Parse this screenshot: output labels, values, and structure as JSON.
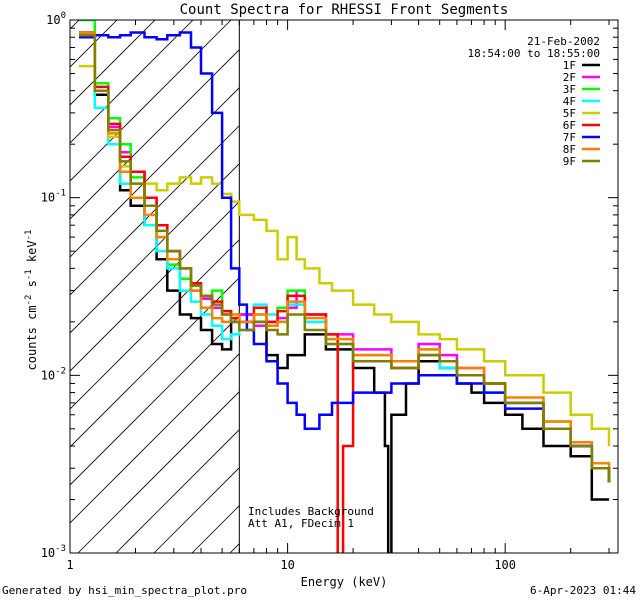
{
  "chart_data": {
    "type": "line",
    "title": "Count Spectra for RHESSI Front Segments",
    "xlabel": "Energy (keV)",
    "ylabel_base": "counts cm",
    "xscale": "log",
    "yscale": "log",
    "xlim": [
      1,
      330
    ],
    "ylim": [
      0.001,
      1.0
    ],
    "x_ticks": [
      {
        "value": 1,
        "label": "1"
      },
      {
        "value": 10,
        "label": "10"
      },
      {
        "value": 100,
        "label": "100"
      }
    ],
    "y_ticks": [
      {
        "value": 1,
        "mant": "10",
        "exp": "0"
      },
      {
        "value": 0.1,
        "mant": "10",
        "exp": "-1"
      },
      {
        "value": 0.01,
        "mant": "10",
        "exp": "-2"
      },
      {
        "value": 0.001,
        "mant": "10",
        "exp": "-3"
      }
    ],
    "date": "21-Feb-2002",
    "time_range": "18:54:00 to 18:55:00",
    "hatched_region": [
      1,
      6
    ],
    "annotations": [
      "Includes Background",
      "Att A1, FDecim  1"
    ],
    "series": [
      {
        "name": "1F",
        "color": "#000000",
        "points": [
          [
            1.1,
            0.85
          ],
          [
            1.3,
            0.38
          ],
          [
            1.5,
            0.22
          ],
          [
            1.7,
            0.11
          ],
          [
            1.9,
            0.09
          ],
          [
            2.2,
            0.07
          ],
          [
            2.5,
            0.045
          ],
          [
            2.8,
            0.03
          ],
          [
            3.2,
            0.022
          ],
          [
            3.6,
            0.021
          ],
          [
            4.0,
            0.018
          ],
          [
            4.5,
            0.015
          ],
          [
            5.0,
            0.014
          ],
          [
            5.5,
            0.02
          ],
          [
            6,
            0.022
          ],
          [
            7,
            0.02
          ],
          [
            8,
            0.013
          ],
          [
            9,
            0.011
          ],
          [
            10,
            0.013
          ],
          [
            12,
            0.017
          ],
          [
            15,
            0.014
          ],
          [
            20,
            0.011
          ],
          [
            25,
            0.008
          ],
          [
            28,
            0.004
          ],
          [
            29,
            0.0009
          ],
          [
            30,
            0.006
          ],
          [
            35,
            0.009
          ],
          [
            40,
            0.012
          ],
          [
            50,
            0.011
          ],
          [
            60,
            0.009
          ],
          [
            70,
            0.008
          ],
          [
            80,
            0.007
          ],
          [
            100,
            0.006
          ],
          [
            120,
            0.005
          ],
          [
            150,
            0.004
          ],
          [
            200,
            0.0035
          ],
          [
            250,
            0.002
          ],
          [
            300,
            0.002
          ]
        ]
      },
      {
        "name": "2F",
        "color": "#ff00ff",
        "points": [
          [
            1.1,
            0.8
          ],
          [
            1.3,
            0.4
          ],
          [
            1.5,
            0.25
          ],
          [
            1.7,
            0.18
          ],
          [
            1.9,
            0.14
          ],
          [
            2.2,
            0.1
          ],
          [
            2.5,
            0.07
          ],
          [
            2.8,
            0.05
          ],
          [
            3.2,
            0.035
          ],
          [
            3.6,
            0.03
          ],
          [
            4.0,
            0.027
          ],
          [
            4.5,
            0.024
          ],
          [
            5.0,
            0.022
          ],
          [
            5.5,
            0.02
          ],
          [
            6,
            0.022
          ],
          [
            7,
            0.019
          ],
          [
            8,
            0.02
          ],
          [
            9,
            0.021
          ],
          [
            10,
            0.024
          ],
          [
            11,
            0.03
          ],
          [
            12,
            0.022
          ],
          [
            15,
            0.017
          ],
          [
            20,
            0.014
          ],
          [
            30,
            0.012
          ],
          [
            40,
            0.015
          ],
          [
            50,
            0.013
          ],
          [
            60,
            0.011
          ],
          [
            80,
            0.009
          ],
          [
            100,
            0.007
          ],
          [
            150,
            0.005
          ],
          [
            200,
            0.004
          ],
          [
            250,
            0.003
          ],
          [
            300,
            0.0025
          ]
        ]
      },
      {
        "name": "3F",
        "color": "#00ff00",
        "points": [
          [
            1.1,
            1.0
          ],
          [
            1.3,
            0.44
          ],
          [
            1.5,
            0.28
          ],
          [
            1.7,
            0.2
          ],
          [
            1.9,
            0.13
          ],
          [
            2.2,
            0.09
          ],
          [
            2.5,
            0.06
          ],
          [
            2.8,
            0.042
          ],
          [
            3.2,
            0.035
          ],
          [
            3.6,
            0.032
          ],
          [
            4.0,
            0.028
          ],
          [
            4.5,
            0.03
          ],
          [
            5.0,
            0.023
          ],
          [
            5.5,
            0.021
          ],
          [
            6,
            0.02
          ],
          [
            7,
            0.022
          ],
          [
            8,
            0.019
          ],
          [
            9,
            0.024
          ],
          [
            10,
            0.03
          ],
          [
            12,
            0.02
          ],
          [
            15,
            0.016
          ],
          [
            20,
            0.013
          ],
          [
            30,
            0.012
          ],
          [
            40,
            0.014
          ],
          [
            50,
            0.012
          ],
          [
            60,
            0.01
          ],
          [
            80,
            0.009
          ],
          [
            100,
            0.007
          ],
          [
            150,
            0.0055
          ],
          [
            200,
            0.004
          ],
          [
            250,
            0.003
          ],
          [
            300,
            0.0025
          ]
        ]
      },
      {
        "name": "4F",
        "color": "#00ffff",
        "points": [
          [
            1.1,
            0.8
          ],
          [
            1.3,
            0.32
          ],
          [
            1.5,
            0.2
          ],
          [
            1.7,
            0.12
          ],
          [
            1.9,
            0.1
          ],
          [
            2.2,
            0.07
          ],
          [
            2.5,
            0.05
          ],
          [
            2.8,
            0.04
          ],
          [
            3.2,
            0.03
          ],
          [
            3.6,
            0.026
          ],
          [
            4.0,
            0.022
          ],
          [
            4.5,
            0.019
          ],
          [
            5.0,
            0.016
          ],
          [
            5.5,
            0.017
          ],
          [
            6,
            0.02
          ],
          [
            7,
            0.025
          ],
          [
            8,
            0.022
          ],
          [
            9,
            0.02
          ],
          [
            10,
            0.025
          ],
          [
            12,
            0.02
          ],
          [
            15,
            0.015
          ],
          [
            20,
            0.012
          ],
          [
            30,
            0.011
          ],
          [
            40,
            0.013
          ],
          [
            50,
            0.011
          ],
          [
            60,
            0.01
          ],
          [
            80,
            0.008
          ],
          [
            100,
            0.007
          ],
          [
            150,
            0.005
          ],
          [
            200,
            0.004
          ],
          [
            250,
            0.003
          ],
          [
            300,
            0.0025
          ]
        ]
      },
      {
        "name": "5F",
        "color": "#cccc00",
        "points": [
          [
            1.1,
            0.55
          ],
          [
            1.3,
            0.4
          ],
          [
            1.5,
            0.22
          ],
          [
            1.7,
            0.15
          ],
          [
            1.9,
            0.12
          ],
          [
            2.2,
            0.12
          ],
          [
            2.5,
            0.11
          ],
          [
            2.8,
            0.12
          ],
          [
            3.2,
            0.13
          ],
          [
            3.6,
            0.12
          ],
          [
            4.0,
            0.13
          ],
          [
            4.5,
            0.12
          ],
          [
            5.0,
            0.105
          ],
          [
            5.5,
            0.095
          ],
          [
            6,
            0.08
          ],
          [
            7,
            0.075
          ],
          [
            8,
            0.065
          ],
          [
            9,
            0.045
          ],
          [
            10,
            0.06
          ],
          [
            11,
            0.045
          ],
          [
            12,
            0.04
          ],
          [
            14,
            0.033
          ],
          [
            16,
            0.03
          ],
          [
            20,
            0.025
          ],
          [
            25,
            0.022
          ],
          [
            30,
            0.02
          ],
          [
            40,
            0.017
          ],
          [
            50,
            0.016
          ],
          [
            60,
            0.014
          ],
          [
            80,
            0.012
          ],
          [
            100,
            0.01
          ],
          [
            150,
            0.008
          ],
          [
            200,
            0.006
          ],
          [
            250,
            0.005
          ],
          [
            300,
            0.004
          ]
        ]
      },
      {
        "name": "6F",
        "color": "#ff0000",
        "points": [
          [
            1.1,
            0.82
          ],
          [
            1.3,
            0.42
          ],
          [
            1.5,
            0.26
          ],
          [
            1.7,
            0.17
          ],
          [
            1.9,
            0.14
          ],
          [
            2.2,
            0.1
          ],
          [
            2.5,
            0.07
          ],
          [
            2.8,
            0.05
          ],
          [
            3.2,
            0.04
          ],
          [
            3.6,
            0.033
          ],
          [
            4.0,
            0.028
          ],
          [
            4.5,
            0.026
          ],
          [
            5.0,
            0.023
          ],
          [
            5.5,
            0.021
          ],
          [
            6,
            0.02
          ],
          [
            7,
            0.024
          ],
          [
            8,
            0.02
          ],
          [
            9,
            0.023
          ],
          [
            10,
            0.028
          ],
          [
            12,
            0.022
          ],
          [
            15,
            0.017
          ],
          [
            17,
            0.0008
          ],
          [
            18,
            0.004
          ],
          [
            20,
            0.012
          ],
          [
            30,
            0.011
          ],
          [
            40,
            0.013
          ],
          [
            50,
            0.012
          ],
          [
            60,
            0.01
          ],
          [
            80,
            0.009
          ],
          [
            100,
            0.007
          ],
          [
            150,
            0.005
          ],
          [
            200,
            0.004
          ],
          [
            250,
            0.003
          ],
          [
            300,
            0.0025
          ]
        ]
      },
      {
        "name": "7F",
        "color": "#0000ff",
        "points": [
          [
            1.1,
            0.8
          ],
          [
            1.3,
            0.82
          ],
          [
            1.5,
            0.8
          ],
          [
            1.7,
            0.82
          ],
          [
            1.9,
            0.85
          ],
          [
            2.2,
            0.8
          ],
          [
            2.5,
            0.78
          ],
          [
            2.8,
            0.82
          ],
          [
            3.2,
            0.85
          ],
          [
            3.6,
            0.7
          ],
          [
            4.0,
            0.5
          ],
          [
            4.5,
            0.3
          ],
          [
            5.0,
            0.1
          ],
          [
            5.5,
            0.04
          ],
          [
            6,
            0.025
          ],
          [
            6.5,
            0.018
          ],
          [
            7,
            0.015
          ],
          [
            8,
            0.012
          ],
          [
            9,
            0.009
          ],
          [
            10,
            0.007
          ],
          [
            11,
            0.006
          ],
          [
            12,
            0.005
          ],
          [
            14,
            0.006
          ],
          [
            16,
            0.007
          ],
          [
            20,
            0.008
          ],
          [
            30,
            0.009
          ],
          [
            40,
            0.01
          ],
          [
            50,
            0.01
          ],
          [
            60,
            0.009
          ],
          [
            80,
            0.008
          ],
          [
            100,
            0.0065
          ],
          [
            150,
            0.005
          ],
          [
            200,
            0.004
          ],
          [
            250,
            0.003
          ],
          [
            300,
            0.0025
          ]
        ]
      },
      {
        "name": "8F",
        "color": "#ff8000",
        "points": [
          [
            1.1,
            0.85
          ],
          [
            1.3,
            0.4
          ],
          [
            1.5,
            0.23
          ],
          [
            1.7,
            0.14
          ],
          [
            1.9,
            0.1
          ],
          [
            2.2,
            0.08
          ],
          [
            2.5,
            0.06
          ],
          [
            2.8,
            0.045
          ],
          [
            3.2,
            0.04
          ],
          [
            3.6,
            0.03
          ],
          [
            4.0,
            0.024
          ],
          [
            4.5,
            0.021
          ],
          [
            5.0,
            0.02
          ],
          [
            5.5,
            0.022
          ],
          [
            6,
            0.02
          ],
          [
            7,
            0.022
          ],
          [
            8,
            0.019
          ],
          [
            9,
            0.02
          ],
          [
            10,
            0.026
          ],
          [
            12,
            0.021
          ],
          [
            15,
            0.016
          ],
          [
            20,
            0.013
          ],
          [
            30,
            0.012
          ],
          [
            40,
            0.014
          ],
          [
            50,
            0.012
          ],
          [
            60,
            0.011
          ],
          [
            80,
            0.009
          ],
          [
            100,
            0.0075
          ],
          [
            150,
            0.0055
          ],
          [
            200,
            0.0042
          ],
          [
            250,
            0.0032
          ],
          [
            300,
            0.0026
          ]
        ]
      },
      {
        "name": "9F",
        "color": "#808000",
        "points": [
          [
            1.1,
            0.82
          ],
          [
            1.3,
            0.4
          ],
          [
            1.5,
            0.24
          ],
          [
            1.7,
            0.16
          ],
          [
            1.9,
            0.12
          ],
          [
            2.2,
            0.09
          ],
          [
            2.5,
            0.065
          ],
          [
            2.8,
            0.05
          ],
          [
            3.2,
            0.04
          ],
          [
            3.6,
            0.032
          ],
          [
            4.0,
            0.028
          ],
          [
            4.5,
            0.025
          ],
          [
            5.0,
            0.022
          ],
          [
            5.5,
            0.02
          ],
          [
            6,
            0.018
          ],
          [
            7,
            0.02
          ],
          [
            8,
            0.018
          ],
          [
            9,
            0.017
          ],
          [
            10,
            0.022
          ],
          [
            12,
            0.018
          ],
          [
            15,
            0.015
          ],
          [
            20,
            0.012
          ],
          [
            30,
            0.011
          ],
          [
            40,
            0.013
          ],
          [
            50,
            0.012
          ],
          [
            60,
            0.01
          ],
          [
            80,
            0.009
          ],
          [
            100,
            0.007
          ],
          [
            150,
            0.005
          ],
          [
            200,
            0.004
          ],
          [
            250,
            0.003
          ],
          [
            300,
            0.0025
          ]
        ]
      }
    ]
  },
  "footer": {
    "generated": "Generated by hsi_min_spectra_plot.pro",
    "timestamp": "6-Apr-2023 01:44"
  }
}
